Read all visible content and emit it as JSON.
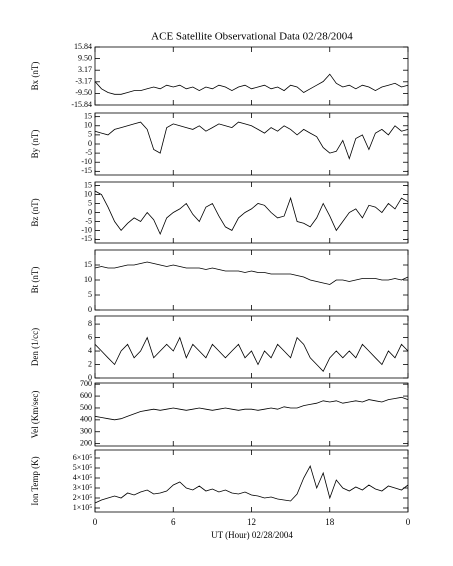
{
  "chart_data": [
    {
      "type": "line",
      "title": "ACE Satellite Observational Data   02/28/2004",
      "y_label": "Bx (nT)",
      "ylim": [
        -15.84,
        15.84
      ],
      "yticks": [
        15.84,
        {
          "value": 9.5,
          "label": "9.50"
        },
        3.17,
        -3.17,
        {
          "value": -9.5,
          "label": "-9.50"
        },
        -15.84
      ],
      "x": [
        0,
        0.5,
        1,
        1.5,
        2,
        2.5,
        3,
        3.5,
        4,
        4.5,
        5,
        5.5,
        6,
        6.5,
        7,
        7.5,
        8,
        8.5,
        9,
        9.5,
        10,
        10.5,
        11,
        11.5,
        12,
        12.5,
        13,
        13.5,
        14,
        14.5,
        15,
        15.5,
        16,
        16.5,
        17,
        17.5,
        18,
        18.5,
        19,
        19.5,
        20,
        20.5,
        21,
        21.5,
        22,
        22.5,
        23,
        23.5,
        24
      ],
      "values": [
        -3,
        -7,
        -9,
        -10,
        -10,
        -9,
        -8,
        -8,
        -7,
        -6,
        -7,
        -5,
        -6,
        -5,
        -7,
        -6,
        -8,
        -6,
        -7,
        -5,
        -6,
        -8,
        -6,
        -5,
        -7,
        -6,
        -5,
        -7,
        -6,
        -8,
        -5,
        -6,
        -9,
        -7,
        -5,
        -3,
        1,
        -4,
        -6,
        -5,
        -7,
        -5,
        -6,
        -8,
        -6,
        -5,
        -4,
        -6,
        -5
      ]
    },
    {
      "type": "line",
      "y_label": "By (nT)",
      "ylim": [
        -17,
        17
      ],
      "yticks": [
        15,
        10,
        5,
        0,
        -5,
        -10,
        -15
      ],
      "x": [
        0,
        0.5,
        1,
        1.5,
        2,
        2.5,
        3,
        3.5,
        4,
        4.5,
        5,
        5.5,
        6,
        6.5,
        7,
        7.5,
        8,
        8.5,
        9,
        9.5,
        10,
        10.5,
        11,
        11.5,
        12,
        12.5,
        13,
        13.5,
        14,
        14.5,
        15,
        15.5,
        16,
        16.5,
        17,
        17.5,
        18,
        18.5,
        19,
        19.5,
        20,
        20.5,
        21,
        21.5,
        22,
        22.5,
        23,
        23.5,
        24
      ],
      "values": [
        7,
        6,
        5,
        8,
        9,
        10,
        11,
        12,
        8,
        -3,
        -5,
        9,
        11,
        10,
        9,
        8,
        10,
        7,
        9,
        11,
        10,
        9,
        12,
        11,
        10,
        8,
        6,
        9,
        7,
        10,
        8,
        5,
        8,
        6,
        4,
        -2,
        -5,
        -4,
        2,
        -8,
        3,
        5,
        -3,
        6,
        8,
        5,
        10,
        7,
        8
      ]
    },
    {
      "type": "line",
      "y_label": "Bz (nT)",
      "ylim": [
        -17,
        17
      ],
      "yticks": [
        15,
        10,
        5,
        0,
        -5,
        -10,
        -15
      ],
      "x": [
        0,
        0.5,
        1,
        1.5,
        2,
        2.5,
        3,
        3.5,
        4,
        4.5,
        5,
        5.5,
        6,
        6.5,
        7,
        7.5,
        8,
        8.5,
        9,
        9.5,
        10,
        10.5,
        11,
        11.5,
        12,
        12.5,
        13,
        13.5,
        14,
        14.5,
        15,
        15.5,
        16,
        16.5,
        17,
        17.5,
        18,
        18.5,
        19,
        19.5,
        20,
        20.5,
        21,
        21.5,
        22,
        22.5,
        23,
        23.5,
        24
      ],
      "values": [
        12,
        10,
        3,
        -5,
        -10,
        -6,
        -3,
        -5,
        0,
        -4,
        -12,
        -3,
        0,
        2,
        5,
        -1,
        -5,
        3,
        5,
        -2,
        -8,
        -10,
        -3,
        0,
        2,
        5,
        4,
        0,
        -3,
        -2,
        8,
        -5,
        -6,
        -8,
        -3,
        5,
        -2,
        -10,
        -5,
        0,
        2,
        -3,
        4,
        3,
        0,
        5,
        2,
        8,
        6
      ]
    },
    {
      "type": "line",
      "y_label": "Bt (nT)",
      "ylim": [
        0,
        20
      ],
      "yticks": [
        0,
        5,
        10,
        15
      ],
      "x": [
        0,
        0.5,
        1,
        1.5,
        2,
        2.5,
        3,
        3.5,
        4,
        4.5,
        5,
        5.5,
        6,
        6.5,
        7,
        7.5,
        8,
        8.5,
        9,
        9.5,
        10,
        10.5,
        11,
        11.5,
        12,
        12.5,
        13,
        13.5,
        14,
        14.5,
        15,
        15.5,
        16,
        16.5,
        17,
        17.5,
        18,
        18.5,
        19,
        19.5,
        20,
        20.5,
        21,
        21.5,
        22,
        22.5,
        23,
        23.5,
        24
      ],
      "values": [
        14,
        14.5,
        14,
        14,
        14.5,
        15,
        15,
        15.5,
        16,
        15.5,
        15,
        14.5,
        15,
        14.5,
        14,
        14,
        14,
        13.5,
        14,
        13.5,
        13,
        13,
        13,
        12.5,
        13,
        12.5,
        12.5,
        12,
        12,
        12,
        12,
        11.5,
        11,
        10,
        9.5,
        9,
        8.5,
        10,
        10,
        9.5,
        10,
        10.5,
        10.5,
        10.5,
        10,
        10,
        10.5,
        10,
        11
      ]
    },
    {
      "type": "line",
      "y_label": "Den (1/cc)",
      "ylim": [
        0,
        9.2
      ],
      "yticks": [
        0,
        2,
        4,
        6,
        8
      ],
      "x": [
        0,
        0.5,
        1,
        1.5,
        2,
        2.5,
        3,
        3.5,
        4,
        4.5,
        5,
        5.5,
        6,
        6.5,
        7,
        7.5,
        8,
        8.5,
        9,
        9.5,
        10,
        10.5,
        11,
        11.5,
        12,
        12.5,
        13,
        13.5,
        14,
        14.5,
        15,
        15.5,
        16,
        16.5,
        17,
        17.5,
        18,
        18.5,
        19,
        19.5,
        20,
        20.5,
        21,
        21.5,
        22,
        22.5,
        23,
        23.5,
        24
      ],
      "values": [
        5,
        4,
        3,
        2,
        4,
        5,
        3,
        4,
        6,
        3,
        4,
        5,
        4,
        6,
        3,
        5,
        4,
        3,
        5,
        4,
        3,
        4,
        5,
        3,
        4,
        2,
        4,
        3,
        5,
        4,
        3,
        6,
        5,
        3,
        2,
        1,
        3,
        4,
        3,
        4,
        3,
        5,
        4,
        3,
        2,
        4,
        3,
        5,
        4
      ]
    },
    {
      "type": "line",
      "y_label": "Vel (Km/sec)",
      "ylim": [
        180,
        710
      ],
      "yticks": [
        200,
        300,
        400,
        500,
        600,
        700
      ],
      "x": [
        0,
        0.5,
        1,
        1.5,
        2,
        2.5,
        3,
        3.5,
        4,
        4.5,
        5,
        5.5,
        6,
        6.5,
        7,
        7.5,
        8,
        8.5,
        9,
        9.5,
        10,
        10.5,
        11,
        11.5,
        12,
        12.5,
        13,
        13.5,
        14,
        14.5,
        15,
        15.5,
        16,
        16.5,
        17,
        17.5,
        18,
        18.5,
        19,
        19.5,
        20,
        20.5,
        21,
        21.5,
        22,
        22.5,
        23,
        23.5,
        24
      ],
      "values": [
        430,
        420,
        410,
        400,
        410,
        430,
        450,
        470,
        480,
        490,
        480,
        490,
        500,
        490,
        480,
        490,
        500,
        490,
        480,
        490,
        500,
        490,
        480,
        490,
        490,
        480,
        490,
        500,
        490,
        510,
        500,
        500,
        520,
        530,
        540,
        560,
        550,
        560,
        540,
        550,
        560,
        550,
        570,
        560,
        550,
        570,
        580,
        590,
        570
      ]
    },
    {
      "type": "line",
      "y_label": "Ion Temp (K)",
      "x_label": "UT (Hour)  02/28/2004",
      "ylim": [
        60000,
        680000
      ],
      "yticks": [
        {
          "value": 100000,
          "label": "1×10⁵"
        },
        {
          "value": 200000,
          "label": "2×10⁵"
        },
        {
          "value": 300000,
          "label": "3×10⁵"
        },
        {
          "value": 400000,
          "label": "4×10⁵"
        },
        {
          "value": 500000,
          "label": "5×10⁵"
        },
        {
          "value": 600000,
          "label": "6×10⁵"
        }
      ],
      "xlim": [
        0,
        24
      ],
      "xticks": [
        0,
        6,
        12,
        18,
        {
          "value": 24,
          "label": "0"
        }
      ],
      "x": [
        0,
        0.5,
        1,
        1.5,
        2,
        2.5,
        3,
        3.5,
        4,
        4.5,
        5,
        5.5,
        6,
        6.5,
        7,
        7.5,
        8,
        8.5,
        9,
        9.5,
        10,
        10.5,
        11,
        11.5,
        12,
        12.5,
        13,
        13.5,
        14,
        14.5,
        15,
        15.5,
        16,
        16.5,
        17,
        17.5,
        18,
        18.5,
        19,
        19.5,
        20,
        20.5,
        21,
        21.5,
        22,
        22.5,
        23,
        23.5,
        24
      ],
      "values": [
        150000,
        180000,
        200000,
        220000,
        200000,
        250000,
        230000,
        260000,
        280000,
        240000,
        250000,
        270000,
        330000,
        360000,
        300000,
        280000,
        320000,
        270000,
        290000,
        260000,
        280000,
        250000,
        240000,
        260000,
        230000,
        220000,
        200000,
        210000,
        190000,
        180000,
        170000,
        240000,
        400000,
        520000,
        300000,
        450000,
        200000,
        380000,
        300000,
        270000,
        310000,
        280000,
        330000,
        290000,
        270000,
        320000,
        300000,
        280000,
        330000
      ]
    }
  ]
}
